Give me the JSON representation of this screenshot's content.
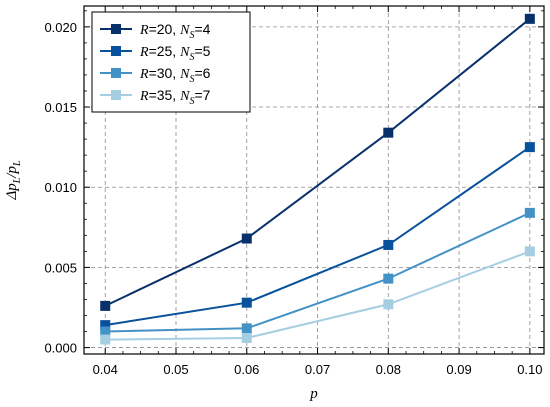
{
  "chart_data": {
    "type": "line",
    "x": [
      0.04,
      0.06,
      0.08,
      0.1
    ],
    "xlim": [
      0.037,
      0.102
    ],
    "ylim": [
      -0.0004,
      0.0213
    ],
    "xticks": [
      0.04,
      0.05,
      0.06,
      0.07,
      0.08,
      0.09,
      0.1
    ],
    "xtick_labels": [
      "0.04",
      "0.05",
      "0.06",
      "0.07",
      "0.08",
      "0.09",
      "0.10"
    ],
    "yticks": [
      0.0,
      0.005,
      0.01,
      0.015,
      0.02
    ],
    "ytick_labels": [
      "0.000",
      "0.005",
      "0.010",
      "0.015",
      "0.020"
    ],
    "xlabel": "p",
    "ylabel": {
      "base": "Δp",
      "sub1": "L",
      "mid": "/p",
      "sub2": "L"
    },
    "grid": true,
    "legend_position": "top-left",
    "series": [
      {
        "R": "20",
        "NS": "4",
        "color": "#08306b",
        "values": [
          0.0026,
          0.0068,
          0.0134,
          0.0205
        ]
      },
      {
        "R": "25",
        "NS": "5",
        "color": "#08519c",
        "values": [
          0.0014,
          0.0028,
          0.0064,
          0.0125
        ]
      },
      {
        "R": "30",
        "NS": "6",
        "color": "#4292c6",
        "values": [
          0.001,
          0.0012,
          0.0043,
          0.0084
        ]
      },
      {
        "R": "35",
        "NS": "7",
        "color": "#a6cee3",
        "values": [
          0.0005,
          0.0006,
          0.0027,
          0.006
        ]
      }
    ]
  }
}
